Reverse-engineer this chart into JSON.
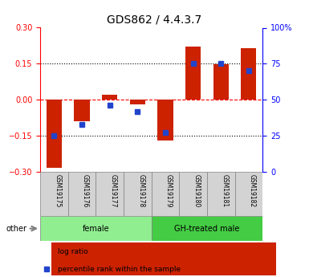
{
  "title": "GDS862 / 4.4.3.7",
  "samples": [
    "GSM19175",
    "GSM19176",
    "GSM19177",
    "GSM19178",
    "GSM19179",
    "GSM19180",
    "GSM19181",
    "GSM19182"
  ],
  "log_ratio": [
    -0.285,
    -0.09,
    0.02,
    -0.02,
    -0.17,
    0.22,
    0.148,
    0.215
  ],
  "percentile_rank": [
    25,
    33,
    46,
    42,
    27,
    75,
    75,
    70
  ],
  "groups": [
    {
      "label": "female",
      "indices": [
        0,
        1,
        2,
        3
      ],
      "color": "#90ee90"
    },
    {
      "label": "GH-treated male",
      "indices": [
        4,
        5,
        6,
        7
      ],
      "color": "#44cc44"
    }
  ],
  "bar_color": "#cc2200",
  "dot_color": "#2244cc",
  "ylim": [
    -0.3,
    0.3
  ],
  "right_ylim": [
    0,
    100
  ],
  "right_yticks": [
    0,
    25,
    50,
    75,
    100
  ],
  "right_yticklabels": [
    "0",
    "25",
    "50",
    "75",
    "100%"
  ],
  "left_yticks": [
    -0.3,
    -0.15,
    0,
    0.15,
    0.3
  ],
  "hlines": [
    -0.15,
    0,
    0.15
  ],
  "hline_styles": [
    "dotted",
    "dashed",
    "dotted"
  ],
  "hline_colors": [
    "black",
    "red",
    "black"
  ]
}
